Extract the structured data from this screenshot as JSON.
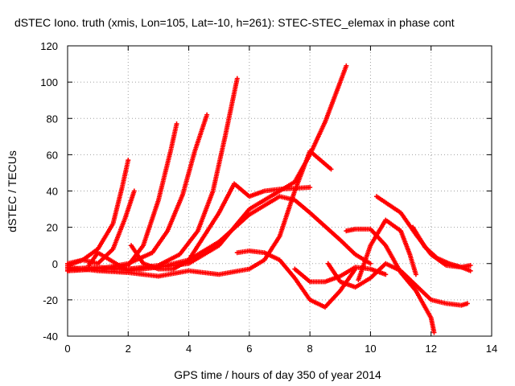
{
  "chart_data": {
    "type": "scatter",
    "title": "dSTEC Iono. truth (xmis, Lon=105, Lat=-10, h=261): STEC-STEC_elemax in phase cont",
    "xlabel": "GPS time / hours of day 350 of year 2014",
    "ylabel": "dSTEC  / TECUs",
    "xlim": [
      0,
      14
    ],
    "ylim": [
      -40,
      120
    ],
    "x_ticks": [
      "0",
      "2",
      "4",
      "6",
      "8",
      "10",
      "12",
      "14"
    ],
    "y_ticks": [
      "-40",
      "-20",
      "0",
      "20",
      "40",
      "60",
      "80",
      "100",
      "120"
    ],
    "x_tick_values": [
      0,
      2,
      4,
      6,
      8,
      10,
      12,
      14
    ],
    "y_tick_values": [
      -40,
      -20,
      0,
      20,
      40,
      60,
      80,
      100,
      120
    ],
    "grid": true,
    "marker": "+",
    "color": "#ff0000",
    "series": [
      {
        "x": [
          0.0,
          0.5,
          1.0,
          1.5,
          1.8,
          2.0
        ],
        "y": [
          0,
          2,
          8,
          22,
          42,
          57
        ]
      },
      {
        "x": [
          0.0,
          0.5,
          1.0,
          1.5,
          1.9,
          2.2
        ],
        "y": [
          -1,
          2,
          0,
          8,
          25,
          40
        ]
      },
      {
        "x": [
          0.0,
          1.0,
          2.0,
          2.5,
          3.0,
          3.4,
          3.6
        ],
        "y": [
          -3,
          -3,
          -1,
          10,
          35,
          62,
          77
        ]
      },
      {
        "x": [
          0.0,
          1.0,
          2.0,
          2.8,
          3.3,
          3.8,
          4.2,
          4.6
        ],
        "y": [
          -4,
          -3,
          0,
          6,
          18,
          38,
          62,
          82
        ]
      },
      {
        "x": [
          0.0,
          1.0,
          2.0,
          3.0,
          3.7,
          4.3,
          4.8,
          5.2,
          5.6
        ],
        "y": [
          -3,
          -2,
          -3,
          -1,
          5,
          18,
          40,
          70,
          102
        ]
      },
      {
        "x": [
          0.0,
          1.0,
          2.0,
          3.0,
          4.0,
          5.0,
          5.5,
          6.0,
          6.5,
          7.0,
          7.5,
          8.0,
          8.5,
          9.0,
          9.2
        ],
        "y": [
          -4,
          -3,
          -3,
          -2,
          0,
          10,
          20,
          30,
          35,
          40,
          45,
          60,
          78,
          100,
          109
        ]
      },
      {
        "x": [
          0.0,
          1.0,
          2.0,
          2.5,
          3.0,
          4.0,
          5.0,
          6.0,
          6.5,
          7.0,
          7.5,
          8.0,
          8.7
        ],
        "y": [
          -2,
          -4,
          -5,
          -6,
          -7,
          -4,
          -6,
          -3,
          2,
          15,
          40,
          62,
          52
        ]
      },
      {
        "x": [
          0.7,
          1.0,
          2.0,
          3.0,
          4.0,
          5.0,
          6.0,
          7.0,
          7.5,
          8.0,
          9.0,
          9.5,
          10.0
        ],
        "y": [
          -1,
          6,
          -4,
          -2,
          2,
          12,
          27,
          37,
          35,
          28,
          13,
          5,
          0
        ]
      },
      {
        "x": [
          2.1,
          2.5,
          3.0,
          3.5,
          4.0,
          5.0,
          5.5,
          6.0,
          6.5,
          7.0,
          8.0
        ],
        "y": [
          10,
          0,
          -3,
          -3,
          2,
          28,
          44,
          37,
          40,
          41,
          42
        ]
      },
      {
        "x": [
          5.6,
          6.0,
          6.5,
          7.0,
          7.5,
          8.0,
          8.5,
          9.0,
          9.5
        ],
        "y": [
          6,
          7,
          6,
          2,
          -8,
          -20,
          -24,
          -15,
          -3
        ]
      },
      {
        "x": [
          7.5,
          8.0,
          8.5,
          9.0,
          9.5,
          10.0,
          10.5
        ],
        "y": [
          -3,
          -10,
          -10,
          -7,
          -2,
          -3,
          -6
        ]
      },
      {
        "x": [
          8.6,
          9.0,
          9.5,
          10.0,
          10.5,
          11.0,
          11.5,
          12.0,
          12.5,
          13.0,
          13.2
        ],
        "y": [
          0,
          -10,
          -13,
          -8,
          0,
          -4,
          -12,
          -20,
          -22,
          -23,
          -22
        ]
      },
      {
        "x": [
          9.2,
          9.5,
          10.0,
          10.5,
          11.0,
          11.5,
          12.0,
          12.1
        ],
        "y": [
          18,
          19,
          19,
          10,
          -5,
          -15,
          -30,
          -38
        ]
      },
      {
        "x": [
          9.6,
          10.0,
          10.5,
          11.0,
          11.3,
          11.5
        ],
        "y": [
          -9,
          10,
          24,
          18,
          5,
          -6
        ]
      },
      {
        "x": [
          10.2,
          11.0,
          11.5,
          12.0,
          12.5,
          13.0,
          13.3
        ],
        "y": [
          37,
          28,
          16,
          5,
          -1,
          -2,
          -1
        ]
      },
      {
        "x": [
          11.4,
          11.8,
          12.2,
          12.6,
          13.0,
          13.3
        ],
        "y": [
          20,
          9,
          3,
          0,
          -2,
          -4
        ]
      }
    ]
  }
}
